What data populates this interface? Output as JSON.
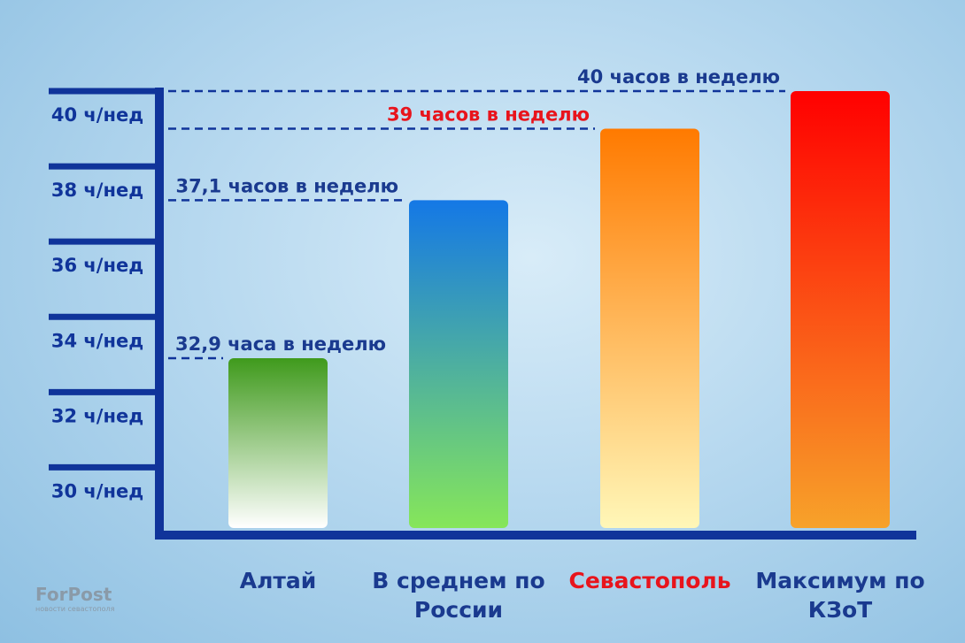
{
  "chart_data": {
    "type": "bar",
    "categories": [
      "Алтай",
      "В среднем по России",
      "Севастополь",
      "Максимум по КЗоТ"
    ],
    "values": [
      32.9,
      37.1,
      39,
      40
    ],
    "value_labels": [
      "32,9 часа в неделю",
      "37,1 часов в неделю",
      "39 часов в неделю",
      "40 часов в неделю"
    ],
    "colors": [
      [
        "#3f9a1c",
        "#ffffff"
      ],
      [
        "#1478e6",
        "#86e65a"
      ],
      [
        "#ff7a00",
        "#fff7b8"
      ],
      [
        "#ff0000",
        "#f7a22a"
      ]
    ],
    "category_colors": [
      "#1a3a8f",
      "#1a3a8f",
      "#e8141c",
      "#1a3a8f"
    ],
    "value_label_colors": [
      "#1a3a8f",
      "#1a3a8f",
      "#e8141c",
      "#1a3a8f"
    ],
    "axis_color": "#10349a",
    "ylim": [
      28.2,
      40
    ],
    "yticks": [
      {
        "value": 30,
        "label": "30 ч/нед"
      },
      {
        "value": 32,
        "label": "32 ч/нед"
      },
      {
        "value": 34,
        "label": "34 ч/нед"
      },
      {
        "value": 36,
        "label": "36 ч/нед"
      },
      {
        "value": 38,
        "label": "38 ч/нед"
      },
      {
        "value": 40,
        "label": "40 ч/нед"
      }
    ]
  },
  "watermark": {
    "name": "ForPost",
    "tagline": "новости севастополя"
  }
}
